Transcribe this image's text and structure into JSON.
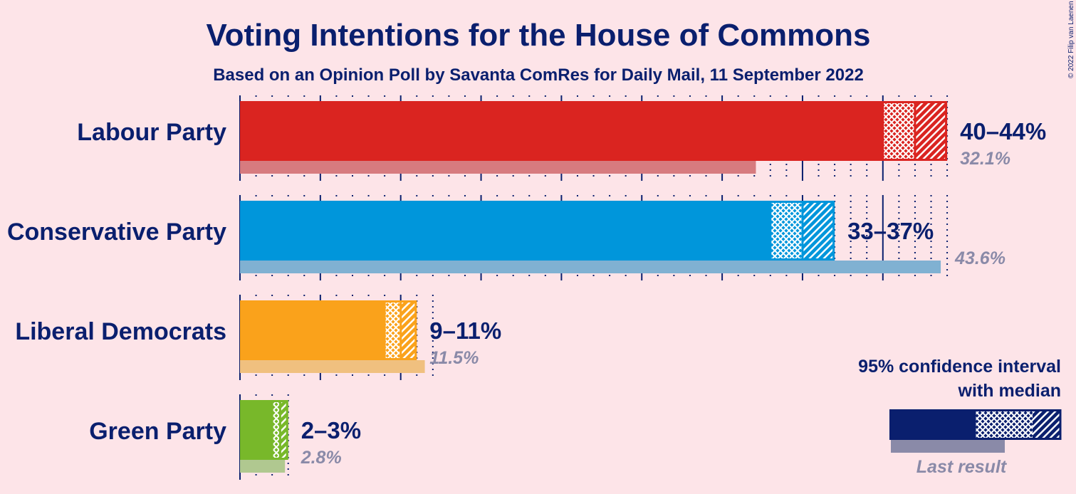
{
  "title": "Voting Intentions for the House of Commons",
  "subtitle": "Based on an Opinion Poll by Savanta ComRes for Daily Mail, 11 September 2022",
  "copyright": "© 2022 Filip van Laenen",
  "legend": {
    "line1": "95% confidence interval",
    "line2": "with median",
    "last_result": "Last result",
    "color": "#0a1f6e"
  },
  "chart_data": {
    "type": "bar",
    "orientation": "horizontal",
    "unit": "%",
    "categories": [
      "Labour Party",
      "Conservative Party",
      "Liberal Democrats",
      "Green Party"
    ],
    "series": [
      {
        "name": "95% confidence interval",
        "values": [
          {
            "low": 40,
            "median": 42,
            "high": 44
          },
          {
            "low": 33,
            "median": 35,
            "high": 37
          },
          {
            "low": 9,
            "median": 10,
            "high": 11
          },
          {
            "low": 2,
            "median": 2.5,
            "high": 3
          }
        ]
      },
      {
        "name": "Last result",
        "values": [
          32.1,
          43.6,
          11.5,
          2.8
        ]
      }
    ],
    "range_labels": [
      "40–44%",
      "33–37%",
      "9–11%",
      "2–3%"
    ],
    "last_labels": [
      "32.1%",
      "43.6%",
      "11.5%",
      "2.8%"
    ],
    "colors": [
      "#da2420",
      "#0096db",
      "#faa21b",
      "#78b82a"
    ],
    "last_colors": [
      "#d77b7f",
      "#80b1d2",
      "#f0c07f",
      "#b0c890"
    ],
    "xlim": [
      0,
      45
    ],
    "grid": true
  }
}
